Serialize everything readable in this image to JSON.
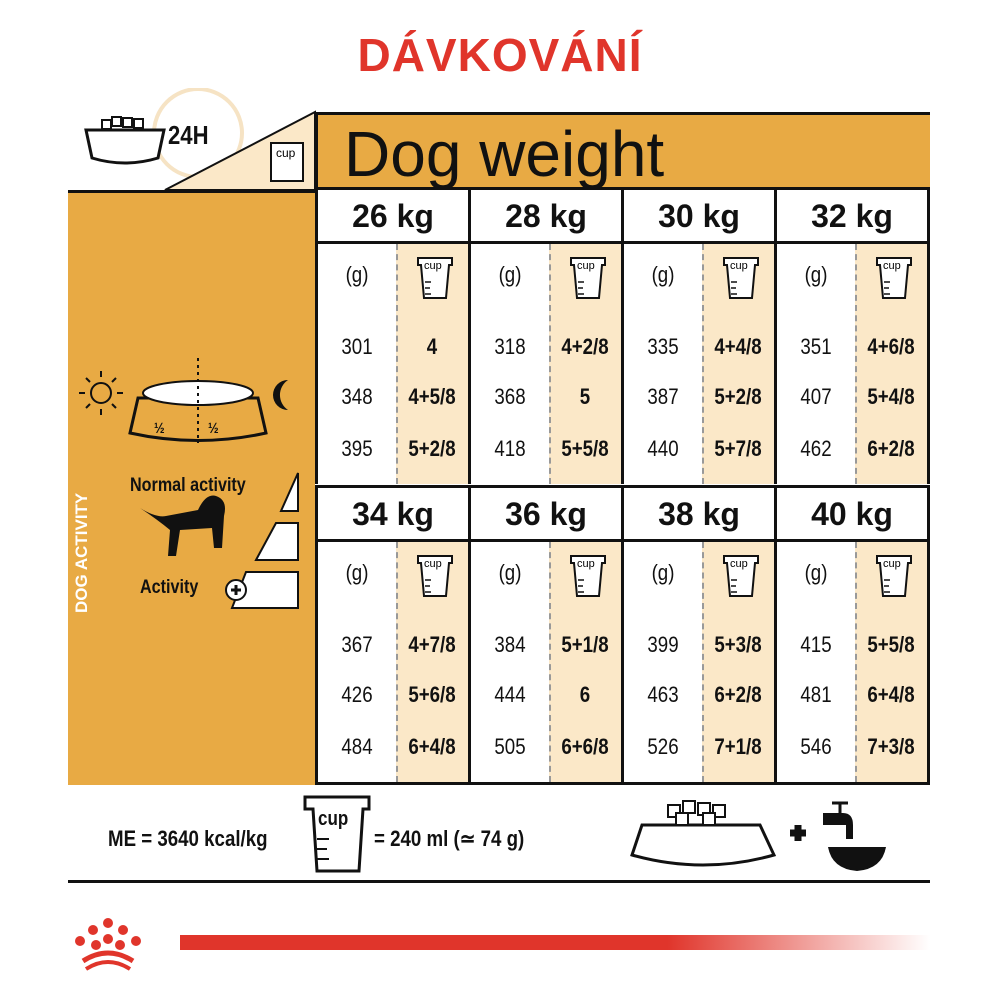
{
  "title": "DÁVKOVÁNÍ",
  "header": {
    "period": "24H",
    "title": "Dog weight",
    "cup_label": "cup"
  },
  "side": {
    "vertical_label": "DOG ACTIVITY",
    "half": "½",
    "normal": "Normal activity",
    "activity": "Activity"
  },
  "units": {
    "grams": "(g)",
    "cup": "cup"
  },
  "weights": [
    {
      "label": "26 kg",
      "rows": [
        [
          "301",
          "4"
        ],
        [
          "348",
          "4+5/8"
        ],
        [
          "395",
          "5+2/8"
        ]
      ]
    },
    {
      "label": "28 kg",
      "rows": [
        [
          "318",
          "4+2/8"
        ],
        [
          "368",
          "5"
        ],
        [
          "418",
          "5+5/8"
        ]
      ]
    },
    {
      "label": "30 kg",
      "rows": [
        [
          "335",
          "4+4/8"
        ],
        [
          "387",
          "5+2/8"
        ],
        [
          "440",
          "5+7/8"
        ]
      ]
    },
    {
      "label": "32 kg",
      "rows": [
        [
          "351",
          "4+6/8"
        ],
        [
          "407",
          "5+4/8"
        ],
        [
          "462",
          "6+2/8"
        ]
      ]
    },
    {
      "label": "34 kg",
      "rows": [
        [
          "367",
          "4+7/8"
        ],
        [
          "426",
          "5+6/8"
        ],
        [
          "484",
          "6+4/8"
        ]
      ]
    },
    {
      "label": "36 kg",
      "rows": [
        [
          "384",
          "5+1/8"
        ],
        [
          "444",
          "6"
        ],
        [
          "505",
          "6+6/8"
        ]
      ]
    },
    {
      "label": "38 kg",
      "rows": [
        [
          "399",
          "5+3/8"
        ],
        [
          "463",
          "6+2/8"
        ],
        [
          "526",
          "7+1/8"
        ]
      ]
    },
    {
      "label": "40 kg",
      "rows": [
        [
          "415",
          "5+5/8"
        ],
        [
          "481",
          "6+4/8"
        ],
        [
          "546",
          "7+3/8"
        ]
      ]
    }
  ],
  "footer": {
    "energy": "ME = 3640 kcal/kg",
    "cup_label": "cup",
    "cup_equiv": "= 240 ml (≃ 74 g)",
    "plus": "+"
  },
  "colors": {
    "accent": "#e8aa44",
    "cream": "#fbe8c8",
    "brand_red": "#e0352b"
  }
}
